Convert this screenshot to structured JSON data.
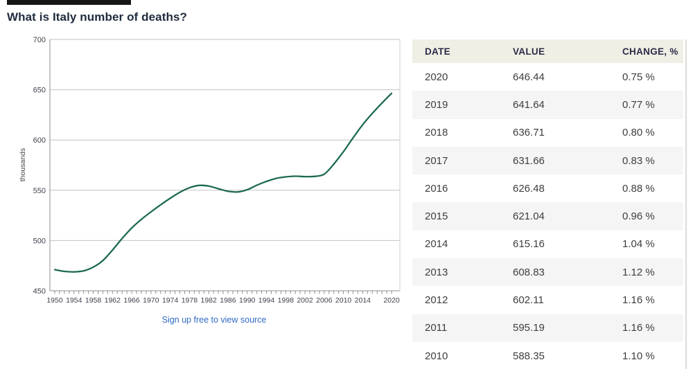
{
  "page": {
    "title": "What is Italy number of deaths?",
    "source_link": "Sign up free to view source",
    "link_color": "#2f6bc3"
  },
  "chart_data": {
    "type": "line",
    "series_name": "Italy number of deaths",
    "xlabel": "",
    "ylabel": "thousands",
    "ylim": [
      450,
      700
    ],
    "yticks": [
      450,
      500,
      550,
      600,
      650,
      700
    ],
    "xticks_labeled": [
      1950,
      1954,
      1958,
      1962,
      1966,
      1970,
      1974,
      1978,
      1982,
      1986,
      1990,
      1994,
      1998,
      2002,
      2006,
      2010,
      2014,
      2020
    ],
    "x": [
      1950,
      1952,
      1954,
      1956,
      1958,
      1960,
      1962,
      1964,
      1966,
      1968,
      1970,
      1972,
      1974,
      1976,
      1978,
      1980,
      1982,
      1984,
      1986,
      1988,
      1990,
      1992,
      1994,
      1996,
      1998,
      2000,
      2002,
      2004,
      2006,
      2008,
      2010,
      2012,
      2014,
      2016,
      2018,
      2020
    ],
    "values": [
      471,
      469.3,
      468.8,
      469.8,
      473.5,
      480,
      490.5,
      502,
      512.5,
      521,
      528.5,
      535.5,
      542,
      548,
      552.5,
      554.8,
      554.2,
      551.5,
      549,
      548.3,
      550.5,
      555,
      558.8,
      561.8,
      563.3,
      564,
      563.6,
      563.8,
      566,
      576,
      588.35,
      602.11,
      615.16,
      626.48,
      636.71,
      646.44
    ],
    "grid": true,
    "legend": false,
    "line_color": "#1c6a50",
    "grid_color": "#c2c2c2",
    "axis_color": "#8f8f8f",
    "tick_label_color": "#3f3f4d"
  },
  "table": {
    "headers": [
      "DATE",
      "VALUE",
      "CHANGE, %"
    ],
    "rows": [
      [
        "2020",
        "646.44",
        "0.75 %"
      ],
      [
        "2019",
        "641.64",
        "0.77 %"
      ],
      [
        "2018",
        "636.71",
        "0.80 %"
      ],
      [
        "2017",
        "631.66",
        "0.83 %"
      ],
      [
        "2016",
        "626.48",
        "0.88 %"
      ],
      [
        "2015",
        "621.04",
        "0.96 %"
      ],
      [
        "2014",
        "615.16",
        "1.04 %"
      ],
      [
        "2013",
        "608.83",
        "1.12 %"
      ],
      [
        "2012",
        "602.11",
        "1.16 %"
      ],
      [
        "2011",
        "595.19",
        "1.16 %"
      ],
      [
        "2010",
        "588.35",
        "1.10 %"
      ]
    ]
  }
}
